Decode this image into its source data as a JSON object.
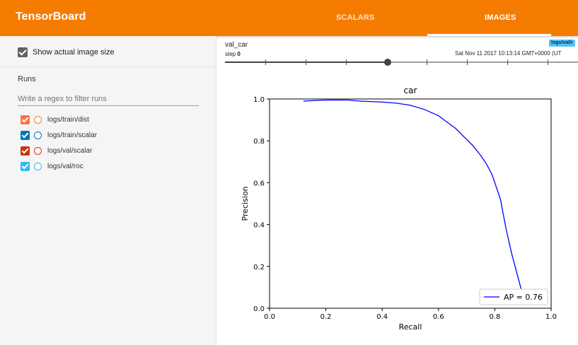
{
  "header": {
    "title": "TensorBoard",
    "tabs": [
      {
        "label": "SCALARS",
        "active": false
      },
      {
        "label": "IMAGES",
        "active": true
      }
    ],
    "color": "#f57c00"
  },
  "sidebar": {
    "show_actual_size": {
      "label": "Show actual image size",
      "checked": true
    },
    "runs_title": "Runs",
    "regex_placeholder": "Write a regex to filter runs",
    "runs": [
      {
        "name": "logs/train/dist",
        "color": "#ff7043",
        "checked": true
      },
      {
        "name": "logs/train/scalar",
        "color": "#0077bb",
        "checked": true
      },
      {
        "name": "logs/val/scalar",
        "color": "#cc3311",
        "checked": true
      },
      {
        "name": "logs/val/roc",
        "color": "#33bbee",
        "checked": true
      }
    ]
  },
  "image_card": {
    "title": "val_car",
    "step_label": "step",
    "step_value": "0",
    "timestamp": "Sat Nov 11 2017 10:13:14 GMT+0000 (UT",
    "run_chip": "logs/val/r",
    "slider_value": 0.46
  },
  "chart_data": {
    "type": "line",
    "title": "car",
    "xlabel": "Recall",
    "ylabel": "Precision",
    "xlim": [
      0.0,
      1.0
    ],
    "ylim": [
      0.0,
      1.0
    ],
    "xticks": [
      "0.0",
      "0.2",
      "0.4",
      "0.6",
      "0.8",
      "1.0"
    ],
    "yticks": [
      "0.0",
      "0.2",
      "0.4",
      "0.6",
      "0.8",
      "1.0"
    ],
    "grid": false,
    "legend_position": "bottom-right",
    "series": [
      {
        "name": "AP = 0.76",
        "color": "#0000ff",
        "x": [
          0.12,
          0.2,
          0.28,
          0.32,
          0.4,
          0.45,
          0.5,
          0.55,
          0.6,
          0.63,
          0.66,
          0.69,
          0.72,
          0.75,
          0.77,
          0.79,
          0.8,
          0.82,
          0.83,
          0.84,
          0.85,
          0.86,
          0.87,
          0.88,
          0.89,
          0.9,
          0.91
        ],
        "y": [
          0.99,
          0.995,
          0.995,
          0.99,
          0.985,
          0.98,
          0.97,
          0.95,
          0.92,
          0.89,
          0.86,
          0.82,
          0.78,
          0.73,
          0.69,
          0.64,
          0.6,
          0.52,
          0.45,
          0.38,
          0.32,
          0.26,
          0.21,
          0.16,
          0.11,
          0.06,
          0.02
        ]
      }
    ]
  }
}
